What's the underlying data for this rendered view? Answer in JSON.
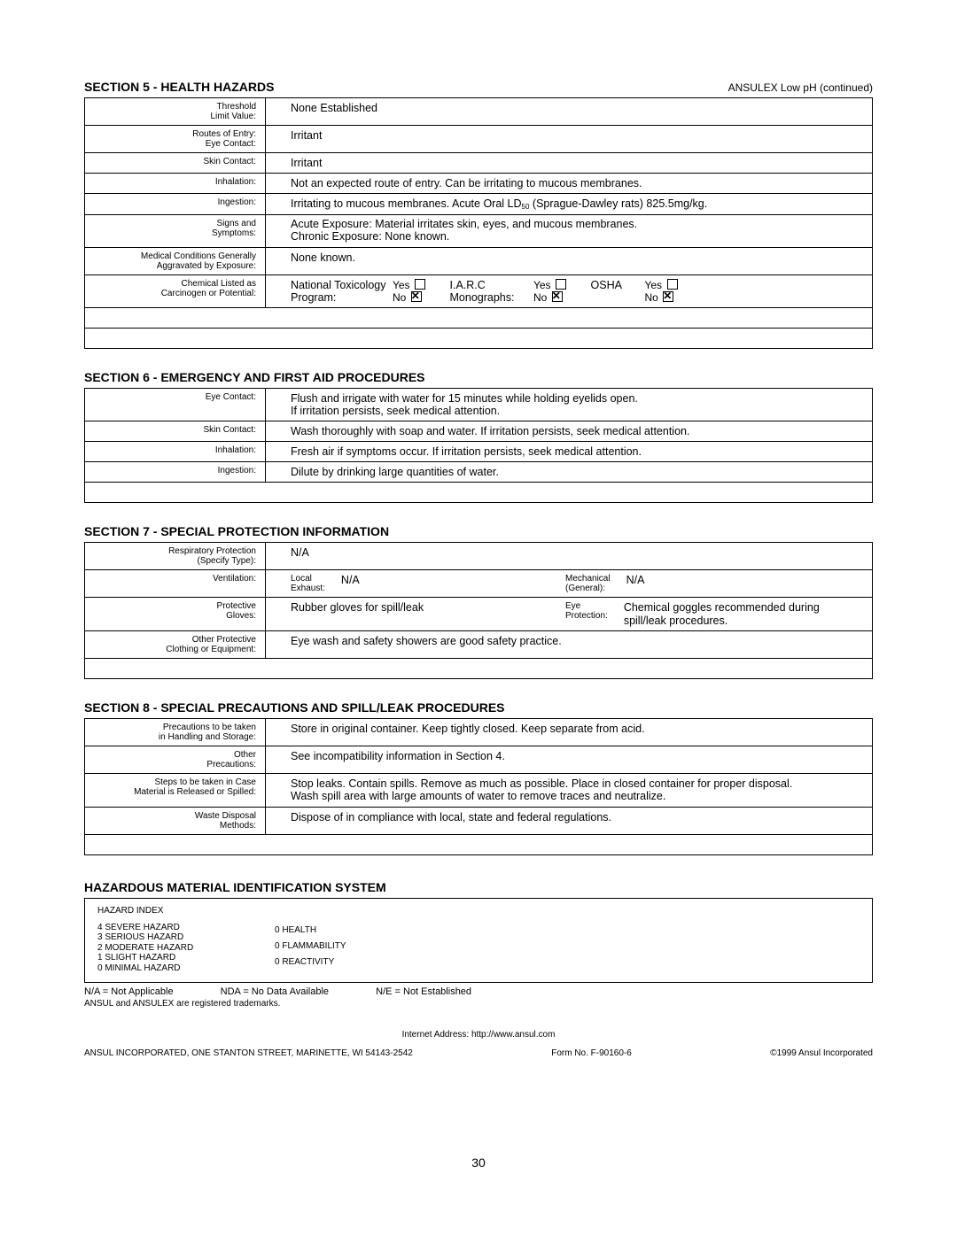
{
  "header_right": "ANSULEX Low pH (continued)",
  "page_number": "30",
  "section5": {
    "title": "SECTION 5  -  HEALTH HAZARDS",
    "rows": [
      {
        "label": "Threshold\nLimit Value:",
        "value": "None Established"
      },
      {
        "label": "Routes of Entry:\nEye Contact:",
        "value": "Irritant"
      },
      {
        "label": "Skin Contact:",
        "value": "Irritant"
      },
      {
        "label": "Inhalation:",
        "value": "Not an expected route of entry.  Can be irritating to mucous membranes."
      },
      {
        "label": "Ingestion:",
        "value_html": "Irritating to mucous membranes. Acute Oral LD<sub>50</sub> (Sprague-Dawley rats) 825.5mg/kg."
      },
      {
        "label": "Signs and\nSymptoms:",
        "value": "Acute Exposure:  Material irritates skin, eyes, and mucous membranes.\nChronic Exposure:  None known."
      },
      {
        "label": "Medical Conditions Generally\nAggravated by Exposure:",
        "value": "None known."
      }
    ],
    "carcinogen": {
      "label": "Chemical Listed as\nCarcinogen or Potential:",
      "ntp": "National Toxicology\nProgram:",
      "iarc": "I.A.R.C\nMonographs:",
      "osha": "OSHA",
      "yes": "Yes",
      "no": "No",
      "ntp_yes": false,
      "ntp_no": true,
      "iarc_yes": false,
      "iarc_no": true,
      "osha_yes": false,
      "osha_no": true
    }
  },
  "section6": {
    "title": "SECTION 6  -  EMERGENCY AND FIRST AID PROCEDURES",
    "rows": [
      {
        "label": "Eye Contact:",
        "value": "Flush and irrigate with water for 15 minutes while holding eyelids open.\nIf irritation persists, seek medical attention."
      },
      {
        "label": "Skin Contact:",
        "value": "Wash  thoroughly with soap and water.  If irritation persists, seek medical attention."
      },
      {
        "label": "Inhalation:",
        "value": "Fresh air if symptoms occur.  If irritation persists, seek medical attention."
      },
      {
        "label": "Ingestion:",
        "value": "Dilute by drinking large quantities of water."
      }
    ]
  },
  "section7": {
    "title": "SECTION 7  -  SPECIAL PROTECTION INFORMATION",
    "rows": [
      {
        "label": "Respiratory Protection\n(Specify Type):",
        "value": "N/A"
      },
      {
        "label": "Ventilation:",
        "split": true,
        "sub1_label": "Local\nExhaust:",
        "sub1_value": "N/A",
        "sub2_label": "Mechanical\n(General):",
        "sub2_value": "N/A"
      },
      {
        "label": "Protective\nGloves:",
        "split": true,
        "sub1_label": "",
        "sub1_value": "Rubber gloves for spill/leak",
        "sub2_label": "Eye\nProtection:",
        "sub2_value": "Chemical goggles recommended during spill/leak procedures."
      },
      {
        "label": "Other Protective\nClothing or Equipment:",
        "value": "Eye wash and safety showers are good safety practice."
      }
    ]
  },
  "section8": {
    "title": "SECTION 8  -  SPECIAL PRECAUTIONS AND SPILL/LEAK PROCEDURES",
    "rows": [
      {
        "label": "Precautions to be taken\nin Handling and Storage:",
        "value": "Store in original container.  Keep tightly closed.  Keep separate from acid."
      },
      {
        "label": "Other\nPrecautions:",
        "value": "See incompatibility information in Section 4."
      },
      {
        "label": "Steps to be taken in Case\nMaterial is Released or Spilled:",
        "value": "Stop leaks.  Contain spills.  Remove as much as possible.  Place in closed container for proper disposal.\nWash spill area with large amounts of water to remove traces and neutralize."
      },
      {
        "label": "Waste Disposal\nMethods:",
        "value": "Dispose of in compliance with local, state and federal regulations."
      }
    ]
  },
  "hmis": {
    "title": "HAZARDOUS MATERIAL IDENTIFICATION SYSTEM",
    "index_label": "HAZARD INDEX",
    "index": [
      "4   SEVERE HAZARD",
      "3   SERIOUS HAZARD",
      "2   MODERATE HAZARD",
      "1   SLIGHT HAZARD",
      "0   MINIMAL HAZARD"
    ],
    "ratings": [
      "0   HEALTH",
      "0   FLAMMABILITY",
      "0   REACTIVITY"
    ],
    "legend": {
      "na": "N/A  =  Not Applicable",
      "nda": "NDA  =  No Data Available",
      "ne": "N/E  =  Not Established"
    },
    "trademark": "ANSUL and ANSULEX are registered trademarks.",
    "internet": "Internet Address:  http://www.ansul.com",
    "addr": "ANSUL INCORPORATED, ONE STANTON STREET, MARINETTE, WI  54143-2542",
    "form": "Form No. F-90160-6",
    "copyright": "©1999 Ansul Incorporated"
  }
}
